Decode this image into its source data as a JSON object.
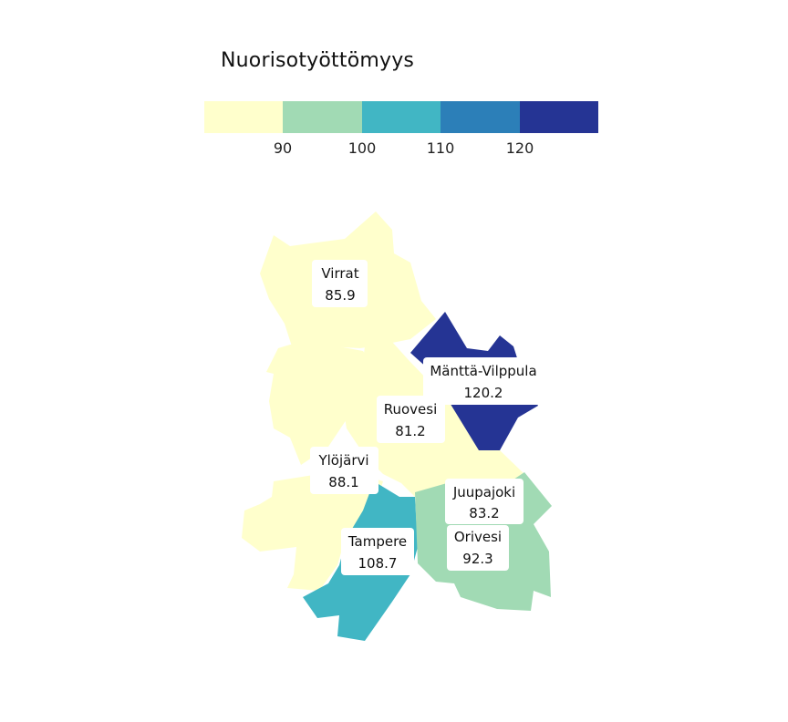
{
  "legend": {
    "title": "Nuorisotyöttömyys",
    "bins": [
      {
        "color": "#ffffcc"
      },
      {
        "color": "#a1dab4"
      },
      {
        "color": "#41b6c4"
      },
      {
        "color": "#2c7fb8"
      },
      {
        "color": "#253494"
      }
    ],
    "ticks": [
      "90",
      "100",
      "110",
      "120"
    ]
  },
  "regions": [
    {
      "name": "Virrat",
      "value": "85.9",
      "color": "#ffffcc"
    },
    {
      "name": "Mänttä-Vilppula",
      "value": "120.2",
      "color": "#253494"
    },
    {
      "name": "Ruovesi",
      "value": "81.2",
      "color": "#ffffcc"
    },
    {
      "name": "Ylöjärvi",
      "value": "88.1",
      "color": "#ffffcc"
    },
    {
      "name": "Juupajoki",
      "value": "83.2",
      "color": "#ffffcc"
    },
    {
      "name": "Orivesi",
      "value": "92.3",
      "color": "#a1dab4"
    },
    {
      "name": "Tampere",
      "value": "108.7",
      "color": "#41b6c4"
    }
  ]
}
